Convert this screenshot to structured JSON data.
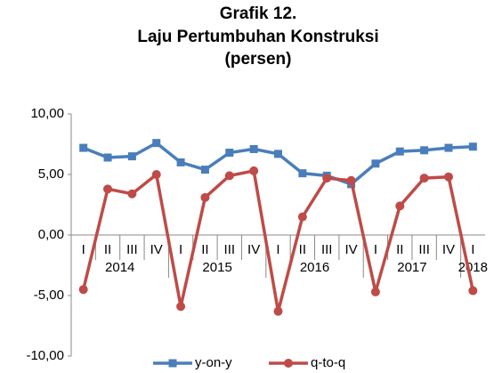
{
  "chart_data": {
    "type": "line",
    "title": [
      "Grafik 12.",
      "Laju Pertumbuhan Konstruksi",
      "(persen)"
    ],
    "categories": [
      "I",
      "II",
      "III",
      "IV",
      "I",
      "II",
      "III",
      "IV",
      "I",
      "II",
      "III",
      "IV",
      "I",
      "II",
      "III",
      "IV",
      "I"
    ],
    "year_groups": [
      "2014",
      "2015",
      "2016",
      "2017",
      "2018"
    ],
    "series": [
      {
        "name": "y-on-y",
        "color": "#4a7ebb",
        "marker": "square",
        "values": [
          7.2,
          6.4,
          6.5,
          7.6,
          6.0,
          5.4,
          6.8,
          7.1,
          6.7,
          5.1,
          4.9,
          4.2,
          5.9,
          6.9,
          7.0,
          7.2,
          7.3
        ]
      },
      {
        "name": "q-to-q",
        "color": "#be4b48",
        "marker": "circle",
        "values": [
          -4.5,
          3.8,
          3.4,
          5.0,
          -5.9,
          3.1,
          4.9,
          5.3,
          -6.3,
          1.5,
          4.7,
          4.5,
          -4.7,
          2.4,
          4.7,
          4.8,
          -4.6
        ]
      }
    ],
    "ylim": [
      -10,
      10
    ],
    "yticks": [
      {
        "value": -10,
        "label": "-10,00"
      },
      {
        "value": -5,
        "label": "-5,00"
      },
      {
        "value": 0,
        "label": "0,00"
      },
      {
        "value": 5,
        "label": "5,00"
      },
      {
        "value": 10,
        "label": "10,00"
      }
    ],
    "legend": "bottom"
  }
}
